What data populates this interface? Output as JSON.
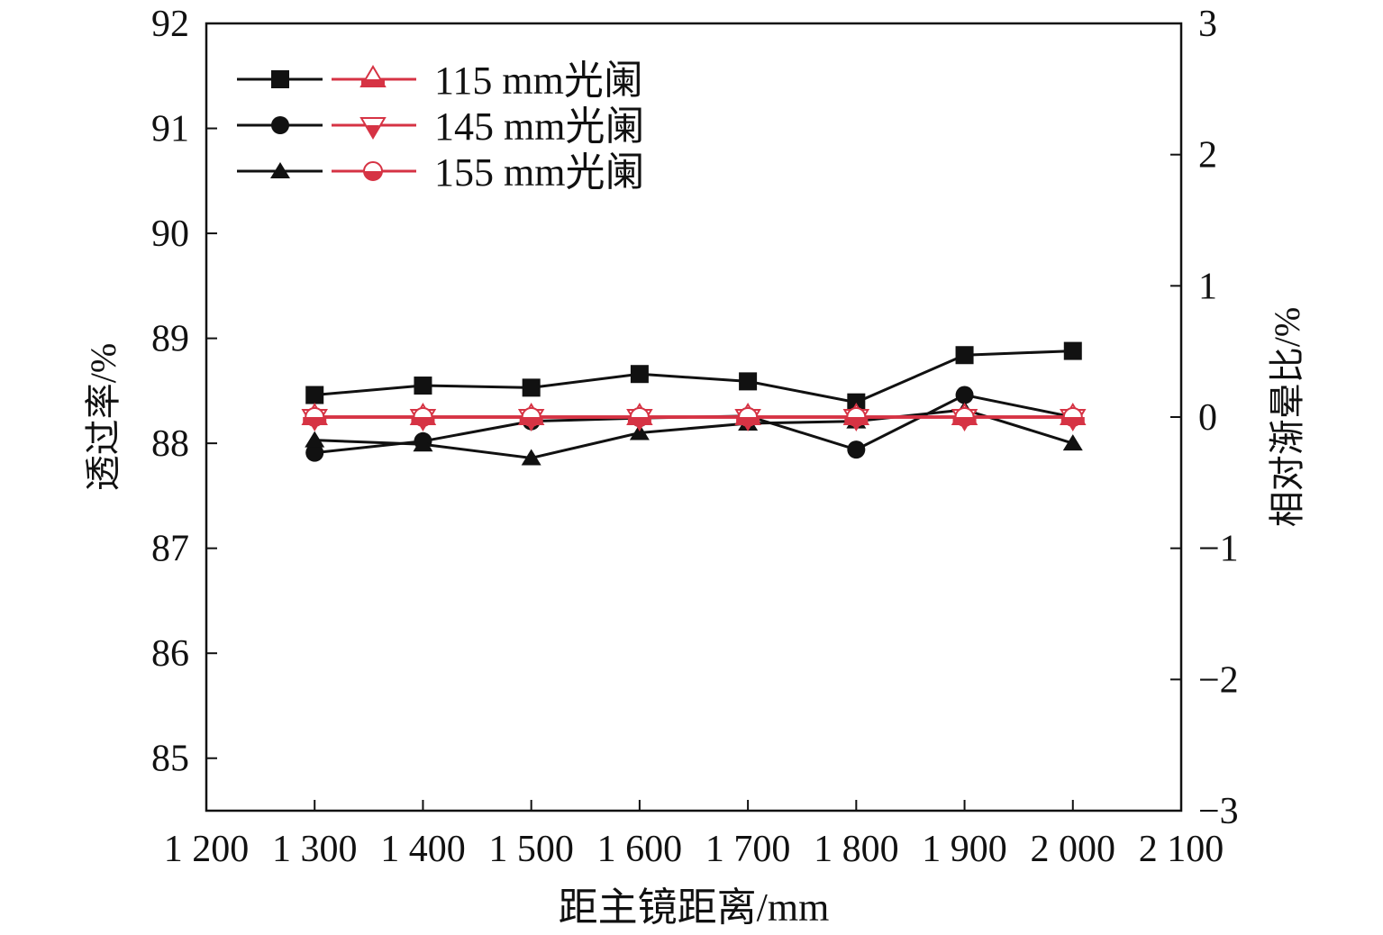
{
  "chart_data": {
    "type": "line",
    "xlabel": "距主镜距离/mm",
    "ylabel": "透过率/%",
    "y2label": "相对渐晕比/%",
    "xlim": [
      1200,
      2100
    ],
    "ylim": [
      84.5,
      92
    ],
    "y2lim": [
      -3,
      3
    ],
    "xticks": [
      1200,
      1300,
      1400,
      1500,
      1600,
      1700,
      1800,
      1900,
      2000,
      2100
    ],
    "xtick_labels": [
      "1 200",
      "1 300",
      "1 400",
      "1 500",
      "1 600",
      "1 700",
      "1 800",
      "1 900",
      "2 000",
      "2 100"
    ],
    "yticks": [
      85,
      86,
      87,
      88,
      89,
      90,
      91,
      92
    ],
    "y2ticks": [
      -3,
      -2,
      -1,
      0,
      1,
      2,
      3
    ],
    "y2tick_labels": [
      "−3",
      "−2",
      "−1",
      "0",
      "1",
      "2",
      "3"
    ],
    "x": [
      1300,
      1400,
      1500,
      1600,
      1700,
      1800,
      1900,
      2000
    ],
    "legend_position": "top-left",
    "legend_labels": [
      "115 mm光阑",
      "145 mm光阑",
      "155 mm光阑"
    ],
    "series": [
      {
        "name": "115 mm光阑 透过率",
        "axis": "left",
        "marker": "square",
        "color": "#111111",
        "values": [
          88.46,
          88.55,
          88.53,
          88.66,
          88.59,
          88.39,
          88.84,
          88.88
        ]
      },
      {
        "name": "145 mm光阑 透过率",
        "axis": "left",
        "marker": "circle",
        "color": "#111111",
        "values": [
          87.91,
          88.02,
          88.21,
          88.24,
          88.26,
          87.94,
          88.46,
          88.25
        ]
      },
      {
        "name": "155 mm光阑 透过率",
        "axis": "left",
        "marker": "triangle-up",
        "color": "#111111",
        "values": [
          88.03,
          87.99,
          87.86,
          88.1,
          88.19,
          88.21,
          88.32,
          88.0
        ]
      },
      {
        "name": "115 mm光阑 相对渐晕比",
        "axis": "right",
        "marker": "triangle-up-open",
        "color": "#d63344",
        "values": [
          0,
          0,
          0,
          0,
          0,
          0,
          0,
          0
        ]
      },
      {
        "name": "145 mm光阑 相对渐晕比",
        "axis": "right",
        "marker": "triangle-down-open",
        "color": "#d63344",
        "values": [
          0,
          0,
          0,
          0,
          0,
          0,
          0,
          0
        ]
      },
      {
        "name": "155 mm光阑 相对渐晕比",
        "axis": "right",
        "marker": "circle-half",
        "color": "#d63344",
        "values": [
          0,
          0,
          0,
          0,
          0,
          0,
          0,
          0
        ]
      }
    ]
  }
}
